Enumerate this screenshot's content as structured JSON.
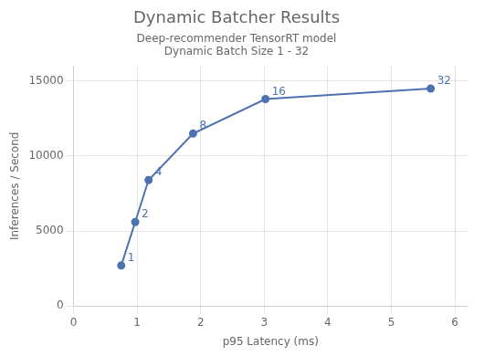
{
  "chart_data": {
    "type": "line",
    "title": "Dynamic Batcher Results",
    "subtitle": "Deep-recommender TensorRT model",
    "plot_title": "Dynamic Batch Size 1 - 32",
    "xlabel": "p95 Latency (ms)",
    "ylabel": "Inferences / Second",
    "x": [
      0.75,
      0.97,
      1.18,
      1.88,
      3.02,
      5.62
    ],
    "values": [
      2700,
      5600,
      8400,
      11500,
      13800,
      14500
    ],
    "point_labels": [
      "1",
      "2",
      "4",
      "8",
      "16",
      "32"
    ],
    "color": "#4C72B0",
    "marker": "circle",
    "xlim": [
      0,
      6.2
    ],
    "ylim": [
      0,
      16000
    ],
    "xticks": [
      0,
      1,
      2,
      3,
      4,
      5,
      6
    ],
    "yticks": [
      0,
      5000,
      10000,
      15000
    ],
    "grid": true
  }
}
